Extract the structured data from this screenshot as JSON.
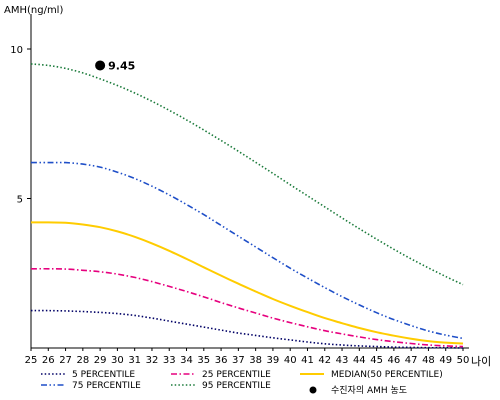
{
  "chart_data": {
    "type": "line",
    "ylabel": "AMH(ng/ml)",
    "xlabel": "나이",
    "xlim": [
      25,
      50
    ],
    "ylim": [
      0,
      11
    ],
    "yticks": [
      5,
      10
    ],
    "x": [
      25,
      26,
      27,
      28,
      29,
      30,
      31,
      32,
      33,
      34,
      35,
      36,
      37,
      38,
      39,
      40,
      41,
      42,
      43,
      44,
      45,
      46,
      47,
      48,
      49,
      50
    ],
    "grid": false,
    "legend_position": "bottom",
    "series": [
      {
        "name": "5 PERCENTILE",
        "color": "#000066",
        "dash": "dotted",
        "values": [
          1.25,
          1.25,
          1.24,
          1.22,
          1.19,
          1.15,
          1.09,
          1.0,
          0.9,
          0.8,
          0.7,
          0.6,
          0.5,
          0.42,
          0.34,
          0.27,
          0.2,
          0.14,
          0.1,
          0.07,
          0.05,
          0.03,
          0.02,
          0.01,
          0.01,
          0.0
        ]
      },
      {
        "name": "25 PERCENTILE",
        "color": "#e6007e",
        "dash": "dashdot",
        "values": [
          2.65,
          2.65,
          2.64,
          2.6,
          2.55,
          2.47,
          2.36,
          2.22,
          2.06,
          1.89,
          1.71,
          1.52,
          1.34,
          1.17,
          1.0,
          0.85,
          0.71,
          0.58,
          0.47,
          0.37,
          0.28,
          0.21,
          0.15,
          0.1,
          0.07,
          0.05
        ]
      },
      {
        "name": "MEDIAN(50 PERCENTILE)",
        "color": "#ffcc00",
        "dash": "solid",
        "values": [
          4.2,
          4.2,
          4.19,
          4.13,
          4.04,
          3.9,
          3.72,
          3.5,
          3.25,
          2.98,
          2.7,
          2.42,
          2.15,
          1.89,
          1.64,
          1.41,
          1.2,
          1.0,
          0.83,
          0.67,
          0.53,
          0.41,
          0.31,
          0.23,
          0.18,
          0.15
        ]
      },
      {
        "name": "75 PERCENTILE",
        "color": "#1f4fc8",
        "dash": "dashdotdot",
        "values": [
          6.2,
          6.2,
          6.2,
          6.15,
          6.05,
          5.88,
          5.67,
          5.41,
          5.12,
          4.8,
          4.46,
          4.1,
          3.74,
          3.38,
          3.02,
          2.67,
          2.34,
          2.02,
          1.72,
          1.44,
          1.18,
          0.95,
          0.75,
          0.57,
          0.43,
          0.32
        ]
      },
      {
        "name": "95 PERCENTILE",
        "color": "#1a7a3a",
        "dash": "dotted",
        "values": [
          9.5,
          9.45,
          9.35,
          9.2,
          9.0,
          8.78,
          8.53,
          8.25,
          7.95,
          7.63,
          7.29,
          6.94,
          6.58,
          6.21,
          5.84,
          5.46,
          5.09,
          4.72,
          4.35,
          3.99,
          3.64,
          3.3,
          2.98,
          2.68,
          2.39,
          2.12
        ]
      }
    ],
    "patient_point": {
      "name": "수진자의 AMH 농도",
      "x": 29,
      "y": 9.45,
      "label": "9.45",
      "color": "#000000"
    }
  }
}
